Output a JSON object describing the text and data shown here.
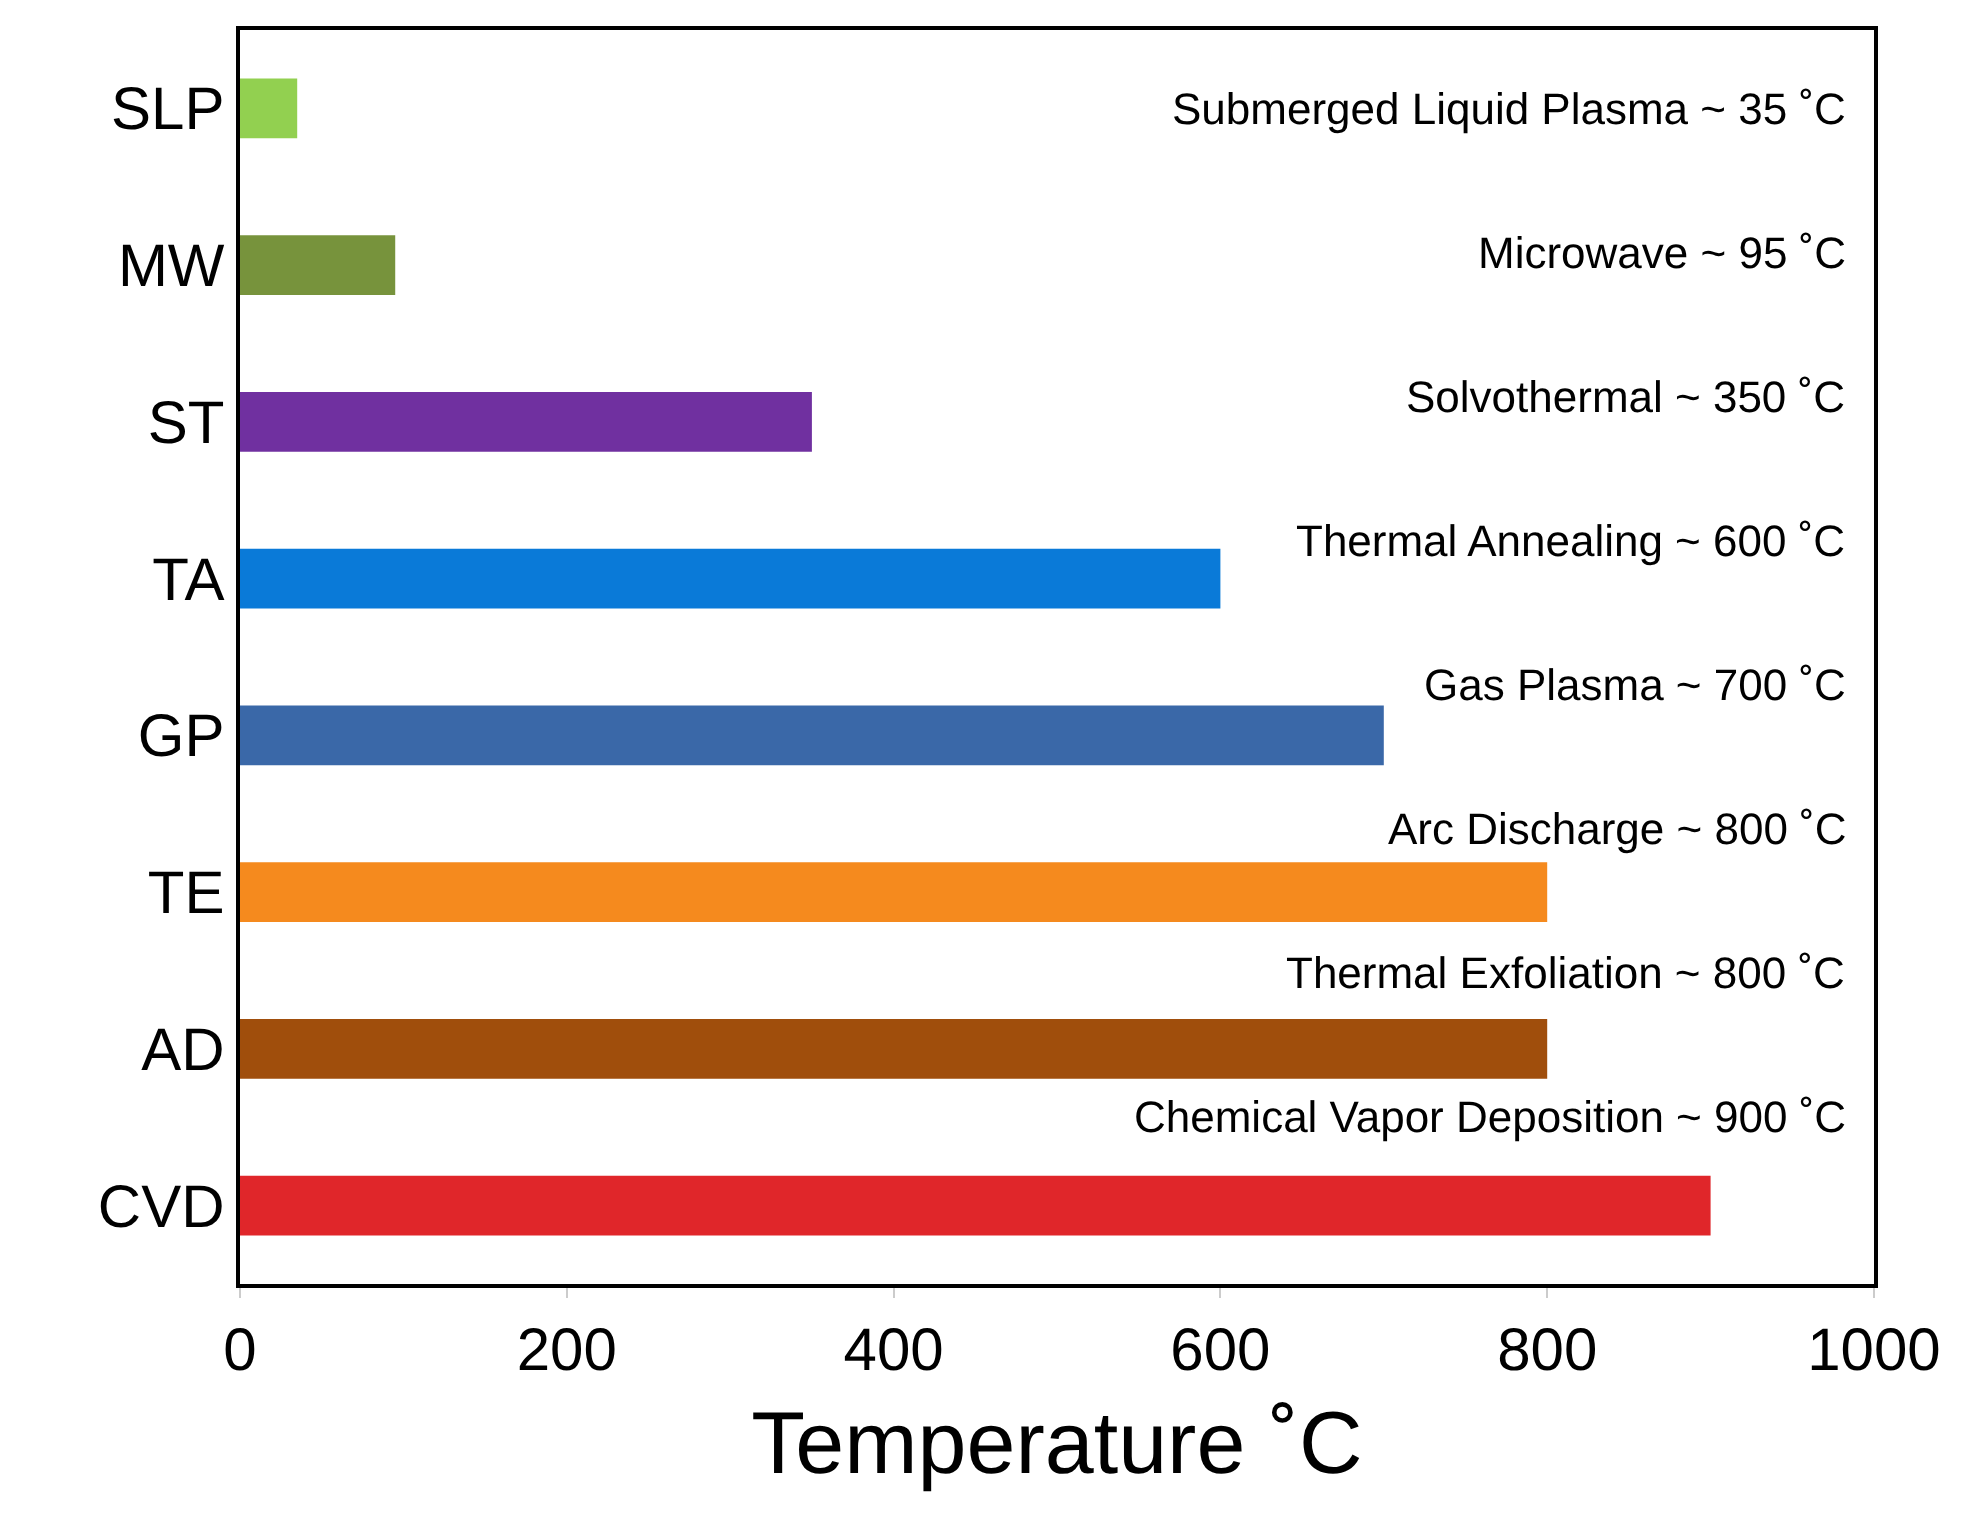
{
  "chart_data": {
    "type": "bar",
    "orientation": "horizontal",
    "xlabel": "Temperature ˚C",
    "categories": [
      "SLP",
      "MW",
      "ST",
      "TA",
      "GP",
      "TE",
      "AD",
      "CVD"
    ],
    "values": [
      35,
      95,
      350,
      600,
      700,
      800,
      800,
      900
    ],
    "colors": [
      "#92d050",
      "#77933c",
      "#7030a0",
      "#0a7ad8",
      "#3a68a8",
      "#f58a1e",
      "#a04e0c",
      "#e0262a"
    ],
    "xlim": [
      0,
      1000
    ],
    "xticks": [
      0,
      200,
      400,
      600,
      800,
      1000
    ],
    "legend": false,
    "annotations": [
      "Submerged Liquid Plasma ~ 35 ˚C",
      "Microwave ~ 95 ˚C",
      "Solvothermal ~ 350 ˚C",
      "Thermal Annealing ~ 600 ˚C",
      "Gas Plasma ~ 700 ˚C",
      "Arc Discharge ~ 800 ˚C",
      "Thermal Exfoliation ~ 800 ˚C",
      "Chemical Vapor Deposition ~ 900 ˚C"
    ]
  }
}
